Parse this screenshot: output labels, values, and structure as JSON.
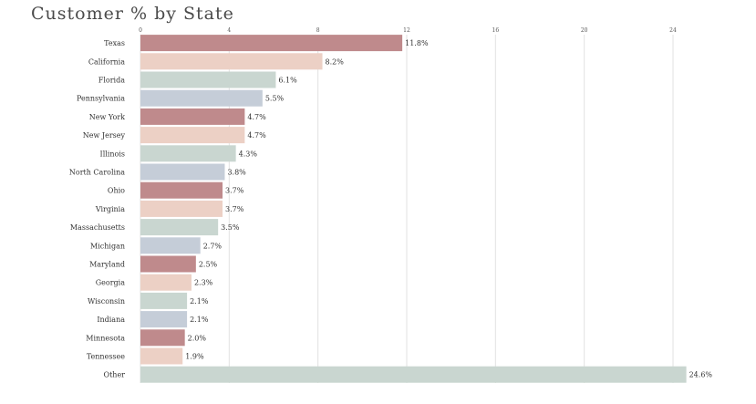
{
  "chart_data": {
    "type": "bar",
    "orientation": "horizontal",
    "title": "Customer % by State",
    "categories": [
      "Texas",
      "California",
      "Florida",
      "Pennsylvania",
      "New York",
      "New Jersey",
      "Illinois",
      "North Carolina",
      "Ohio",
      "Virginia",
      "Massachusetts",
      "Michigan",
      "Maryland",
      "Georgia",
      "Wisconsin",
      "Indiana",
      "Minnesota",
      "Tennessee",
      "Other"
    ],
    "values": [
      11.8,
      8.2,
      6.1,
      5.5,
      4.7,
      4.7,
      4.3,
      3.8,
      3.7,
      3.7,
      3.5,
      2.7,
      2.5,
      2.3,
      2.1,
      2.1,
      2.0,
      1.9,
      24.6
    ],
    "value_labels": [
      "11.8%",
      "8.2%",
      "6.1%",
      "5.5%",
      "4.7%",
      "4.7%",
      "4.3%",
      "3.8%",
      "3.7%",
      "3.7%",
      "3.5%",
      "2.7%",
      "2.5%",
      "2.3%",
      "2.1%",
      "2.1%",
      "2.0%",
      "1.9%",
      "24.6%"
    ],
    "xlim": [
      0,
      24
    ],
    "xticks": [
      "0",
      "4",
      "8",
      "12",
      "16",
      "20",
      "24"
    ],
    "grid": true,
    "legend": "none",
    "colors": [
      "#bf8a8c",
      "#ecd0c5",
      "#c9d6d0",
      "#c5cdd8"
    ]
  }
}
